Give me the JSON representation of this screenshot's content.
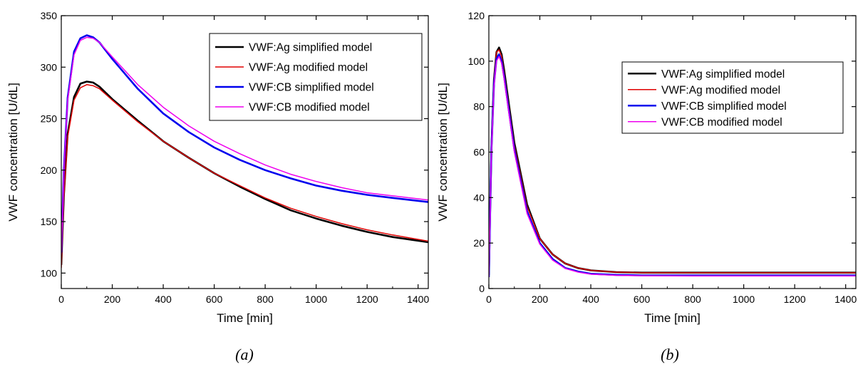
{
  "chart_data": [
    {
      "type": "line",
      "caption": "(a)",
      "xlabel": "Time [min]",
      "ylabel": "VWF concentration [U/dL]",
      "xlim": [
        0,
        1440
      ],
      "ylim": [
        85,
        350
      ],
      "xticks": [
        0,
        200,
        400,
        600,
        800,
        1000,
        1200,
        1400
      ],
      "yticks": [
        100,
        150,
        200,
        250,
        300,
        350
      ],
      "grid": false,
      "legend_position": "top-right",
      "series": [
        {
          "name": "VWF:Ag simplified model",
          "color": "#000000",
          "x": [
            0,
            10,
            25,
            50,
            75,
            100,
            125,
            150,
            200,
            300,
            400,
            500,
            600,
            700,
            800,
            900,
            1000,
            1100,
            1200,
            1300,
            1440
          ],
          "y": [
            108,
            175,
            235,
            271,
            284,
            286,
            285,
            281,
            269,
            248,
            228,
            212,
            197,
            184,
            172,
            161,
            153,
            146,
            140,
            135,
            130
          ]
        },
        {
          "name": "VWF:Ag modified model",
          "color": "#e00000",
          "x": [
            0,
            10,
            25,
            50,
            75,
            100,
            125,
            150,
            200,
            300,
            400,
            500,
            600,
            700,
            800,
            900,
            1000,
            1100,
            1200,
            1300,
            1440
          ],
          "y": [
            105,
            172,
            232,
            268,
            280,
            283,
            282,
            279,
            268,
            247,
            228,
            212,
            197,
            185,
            173,
            163,
            155,
            148,
            142,
            137,
            131
          ]
        },
        {
          "name": "VWF:CB simplified model",
          "color": "#0000ee",
          "x": [
            0,
            10,
            25,
            50,
            75,
            100,
            125,
            150,
            200,
            300,
            400,
            500,
            600,
            700,
            800,
            900,
            1000,
            1100,
            1200,
            1300,
            1440
          ],
          "y": [
            120,
            200,
            270,
            315,
            328,
            331,
            329,
            324,
            308,
            279,
            255,
            237,
            222,
            210,
            200,
            192,
            185,
            180,
            176,
            173,
            169
          ]
        },
        {
          "name": "VWF:CB modified model",
          "color": "#ee00ee",
          "x": [
            0,
            10,
            25,
            50,
            75,
            100,
            125,
            150,
            200,
            300,
            400,
            500,
            600,
            700,
            800,
            900,
            1000,
            1100,
            1200,
            1300,
            1440
          ],
          "y": [
            118,
            198,
            268,
            312,
            326,
            329,
            328,
            324,
            310,
            283,
            261,
            243,
            228,
            216,
            205,
            196,
            189,
            183,
            178,
            175,
            171
          ]
        }
      ]
    },
    {
      "type": "line",
      "caption": "(b)",
      "xlabel": "Time [min]",
      "ylabel": "VWF concentration [U/dL]",
      "xlim": [
        0,
        1440
      ],
      "ylim": [
        0,
        120
      ],
      "xticks": [
        0,
        200,
        400,
        600,
        800,
        1000,
        1200,
        1400
      ],
      "yticks": [
        0,
        20,
        40,
        60,
        80,
        100,
        120
      ],
      "grid": false,
      "legend_position": "top-right",
      "series": [
        {
          "name": "VWF:Ag simplified model",
          "color": "#000000",
          "x": [
            0,
            5,
            10,
            20,
            30,
            40,
            50,
            60,
            80,
            100,
            150,
            200,
            250,
            300,
            350,
            400,
            500,
            600,
            800,
            1000,
            1200,
            1440
          ],
          "y": [
            6,
            35,
            62,
            92,
            104,
            106,
            103,
            96,
            80,
            64,
            37,
            22,
            15,
            11,
            9,
            8,
            7.2,
            7,
            7,
            7,
            7,
            7
          ]
        },
        {
          "name": "VWF:Ag modified model",
          "color": "#e00000",
          "x": [
            0,
            5,
            10,
            20,
            30,
            40,
            50,
            60,
            80,
            100,
            150,
            200,
            250,
            300,
            350,
            400,
            500,
            600,
            800,
            1000,
            1200,
            1440
          ],
          "y": [
            6,
            36,
            63,
            93,
            104,
            105,
            102,
            95,
            79,
            63,
            36,
            22,
            15,
            11,
            9,
            8,
            7.2,
            7,
            7,
            7,
            7,
            7
          ]
        },
        {
          "name": "VWF:CB simplified model",
          "color": "#0000ee",
          "x": [
            0,
            5,
            10,
            20,
            30,
            40,
            50,
            60,
            80,
            100,
            150,
            200,
            250,
            300,
            350,
            400,
            500,
            600,
            800,
            1000,
            1200,
            1440
          ],
          "y": [
            5,
            34,
            61,
            90,
            101,
            103,
            100,
            93,
            77,
            61,
            34,
            20,
            13,
            9,
            7.5,
            6.5,
            6,
            5.8,
            5.8,
            5.8,
            5.8,
            5.8
          ]
        },
        {
          "name": "VWF:CB modified model",
          "color": "#ee00ee",
          "x": [
            0,
            5,
            10,
            20,
            30,
            40,
            50,
            60,
            80,
            100,
            150,
            200,
            250,
            300,
            350,
            400,
            500,
            600,
            800,
            1000,
            1200,
            1440
          ],
          "y": [
            5,
            33,
            60,
            89,
            100,
            102,
            99,
            92,
            76,
            60,
            33,
            19.5,
            12.5,
            8.8,
            7.2,
            6.3,
            5.8,
            5.6,
            5.5,
            5.5,
            5.5,
            5.5
          ]
        }
      ]
    }
  ]
}
